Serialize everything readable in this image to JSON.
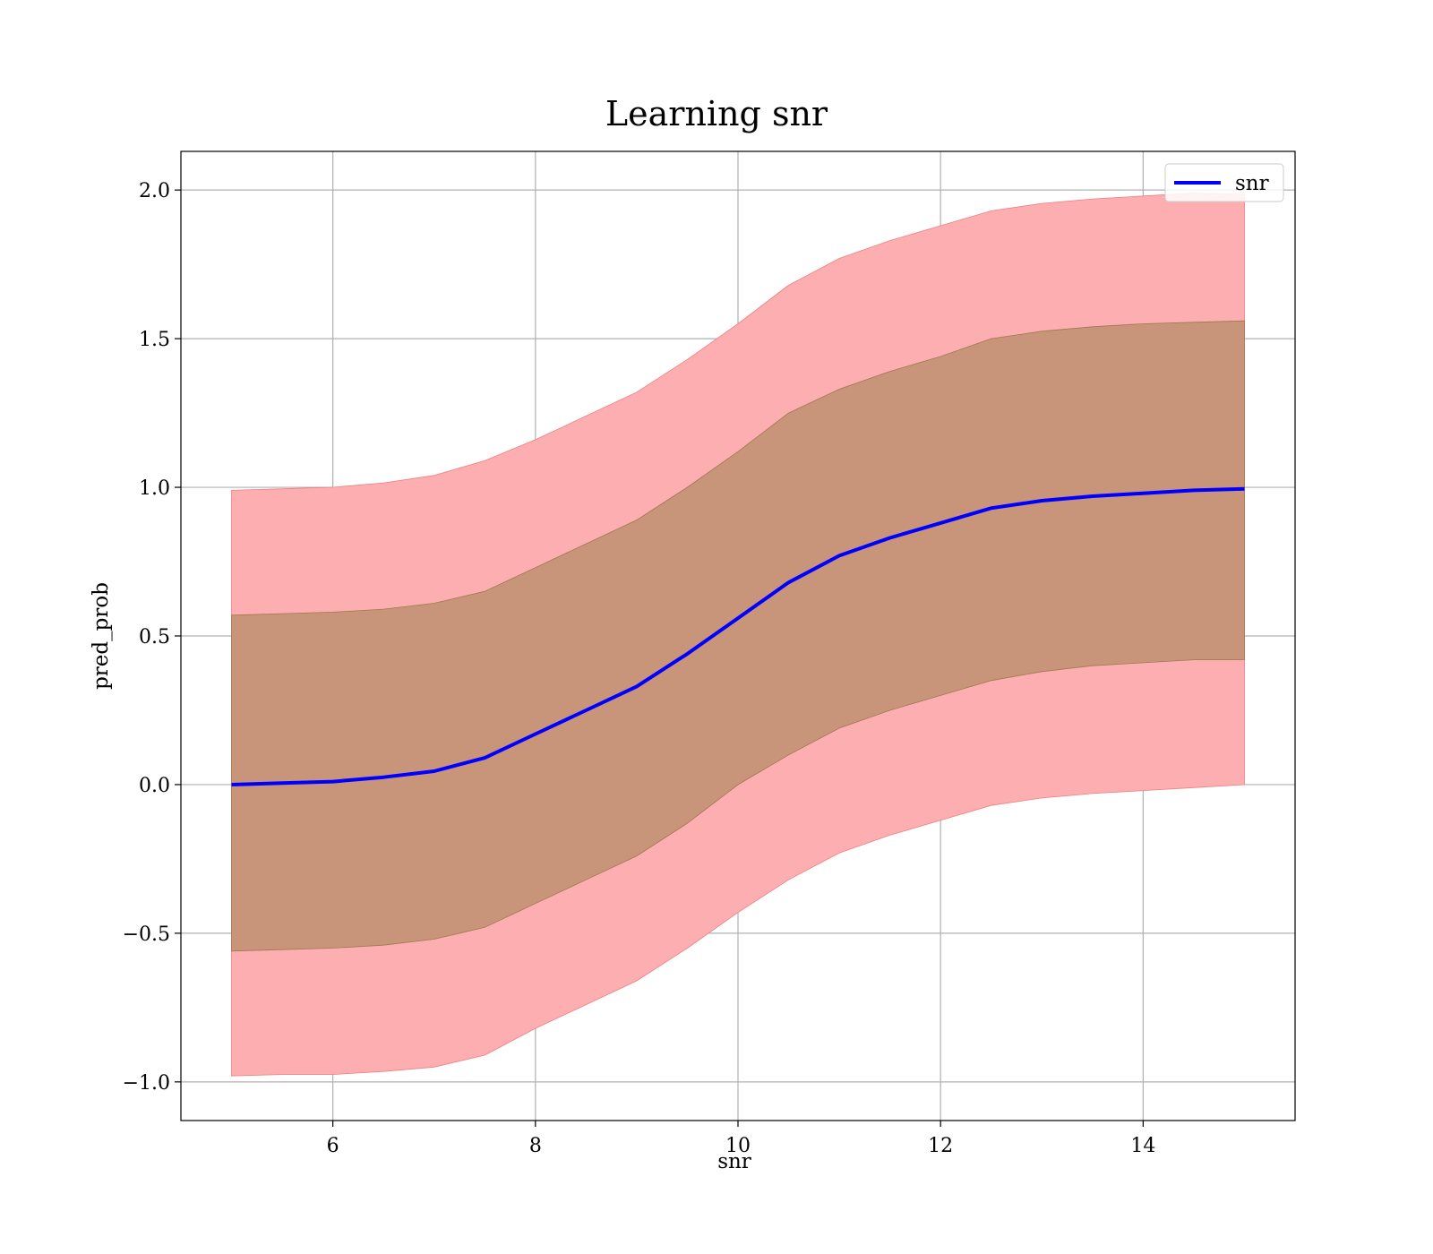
{
  "chart_data": {
    "type": "line",
    "title": "Learning snr",
    "xlabel": "snr",
    "ylabel": "pred_prob",
    "xlim": [
      4.5,
      15.5
    ],
    "ylim": [
      -1.13,
      2.13
    ],
    "xticks": [
      6,
      8,
      10,
      12,
      14
    ],
    "yticks": [
      -1.0,
      -0.5,
      0.0,
      0.5,
      1.0,
      1.5,
      2.0
    ],
    "xtick_labels": [
      "6",
      "8",
      "10",
      "12",
      "14"
    ],
    "ytick_labels": [
      "−1.0",
      "−0.5",
      "0.0",
      "0.5",
      "1.0",
      "1.5",
      "2.0"
    ],
    "grid": true,
    "legend": {
      "position": "top-right",
      "entries": [
        "snr"
      ]
    },
    "colors": {
      "line": "#0000ff",
      "outer_band": "#fcaeb0",
      "inner_band": "#c8957a"
    },
    "x": [
      5.0,
      5.5,
      6.0,
      6.5,
      7.0,
      7.5,
      8.0,
      8.5,
      9.0,
      9.5,
      10.0,
      10.5,
      11.0,
      11.5,
      12.0,
      12.5,
      13.0,
      13.5,
      14.0,
      14.5,
      15.0
    ],
    "series": [
      {
        "name": "snr",
        "values": [
          0.0,
          0.005,
          0.01,
          0.025,
          0.045,
          0.09,
          0.17,
          0.25,
          0.33,
          0.44,
          0.56,
          0.68,
          0.77,
          0.83,
          0.88,
          0.93,
          0.955,
          0.97,
          0.98,
          0.99,
          0.995
        ]
      }
    ],
    "bands": [
      {
        "label": "outer",
        "lower": [
          -0.98,
          -0.975,
          -0.975,
          -0.965,
          -0.95,
          -0.91,
          -0.82,
          -0.74,
          -0.66,
          -0.55,
          -0.43,
          -0.32,
          -0.23,
          -0.17,
          -0.12,
          -0.07,
          -0.045,
          -0.03,
          -0.02,
          -0.01,
          0.0
        ],
        "upper": [
          0.99,
          0.995,
          1.0,
          1.015,
          1.04,
          1.09,
          1.16,
          1.24,
          1.32,
          1.43,
          1.55,
          1.68,
          1.77,
          1.83,
          1.88,
          1.93,
          1.955,
          1.97,
          1.98,
          1.99,
          1.985
        ]
      },
      {
        "label": "inner",
        "lower": [
          -0.56,
          -0.555,
          -0.55,
          -0.54,
          -0.52,
          -0.48,
          -0.4,
          -0.32,
          -0.24,
          -0.13,
          0.0,
          0.1,
          0.19,
          0.25,
          0.3,
          0.35,
          0.38,
          0.4,
          0.41,
          0.42,
          0.42
        ],
        "upper": [
          0.57,
          0.575,
          0.58,
          0.59,
          0.61,
          0.65,
          0.73,
          0.81,
          0.89,
          1.0,
          1.12,
          1.25,
          1.33,
          1.39,
          1.44,
          1.5,
          1.525,
          1.54,
          1.55,
          1.555,
          1.56
        ]
      }
    ]
  }
}
